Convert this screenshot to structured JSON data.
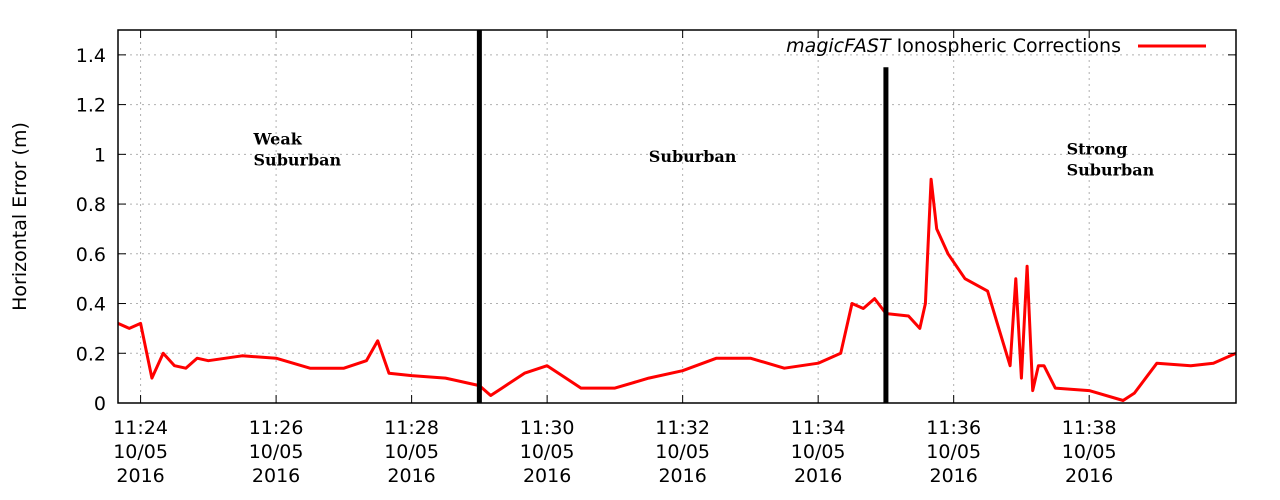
{
  "chart_data": {
    "type": "line",
    "ylabel": "Horizontal Error (m)",
    "xlabel": "",
    "xlim": [
      "11:23:40",
      "11:40:10"
    ],
    "ylim": [
      0,
      1.5
    ],
    "y_ticks": [
      "0",
      "0.2",
      "0.4",
      "0.6",
      "0.8",
      "1",
      "1.2",
      "1.4"
    ],
    "x_ticks": [
      {
        "time": "11:24",
        "label": [
          "11:24",
          "10/05",
          "2016"
        ]
      },
      {
        "time": "11:26",
        "label": [
          "11:26",
          "10/05",
          "2016"
        ]
      },
      {
        "time": "11:28",
        "label": [
          "11:28",
          "10/05",
          "2016"
        ]
      },
      {
        "time": "11:30",
        "label": [
          "11:30",
          "10/05",
          "2016"
        ]
      },
      {
        "time": "11:32",
        "label": [
          "11:32",
          "10/05",
          "2016"
        ]
      },
      {
        "time": "11:34",
        "label": [
          "11:34",
          "10/05",
          "2016"
        ]
      },
      {
        "time": "11:36",
        "label": [
          "11:36",
          "10/05",
          "2016"
        ]
      },
      {
        "time": "11:38",
        "label": [
          "11:38",
          "10/05",
          "2016"
        ]
      }
    ],
    "grid": true,
    "legend": {
      "position": "top-right"
    },
    "series": [
      {
        "name_italic": "magicFAST",
        "name_rest": " Ionospheric Corrections",
        "color": "#ff0000",
        "x": [
          "11:23:40",
          "11:23:50",
          "11:24:00",
          "11:24:10",
          "11:24:20",
          "11:24:30",
          "11:24:40",
          "11:24:50",
          "11:25:00",
          "11:25:30",
          "11:26:00",
          "11:26:30",
          "11:27:00",
          "11:27:20",
          "11:27:30",
          "11:27:40",
          "11:28:00",
          "11:28:30",
          "11:28:50",
          "11:29:00",
          "11:29:10",
          "11:29:20",
          "11:29:40",
          "11:30:00",
          "11:30:30",
          "11:31:00",
          "11:31:30",
          "11:32:00",
          "11:32:30",
          "11:33:00",
          "11:33:30",
          "11:34:00",
          "11:34:20",
          "11:34:30",
          "11:34:40",
          "11:34:50",
          "11:35:00",
          "11:35:20",
          "11:35:30",
          "11:35:35",
          "11:35:40",
          "11:35:45",
          "11:35:55",
          "11:36:10",
          "11:36:30",
          "11:36:40",
          "11:36:50",
          "11:36:55",
          "11:37:00",
          "11:37:05",
          "11:37:10",
          "11:37:15",
          "11:37:20",
          "11:37:30",
          "11:38:00",
          "11:38:30",
          "11:38:40",
          "11:39:00",
          "11:39:30",
          "11:39:50",
          "11:40:10"
        ],
        "y": [
          0.32,
          0.3,
          0.32,
          0.1,
          0.2,
          0.15,
          0.14,
          0.18,
          0.17,
          0.19,
          0.18,
          0.14,
          0.14,
          0.17,
          0.25,
          0.12,
          0.11,
          0.1,
          0.08,
          0.07,
          0.03,
          0.06,
          0.12,
          0.15,
          0.06,
          0.06,
          0.1,
          0.13,
          0.18,
          0.18,
          0.14,
          0.16,
          0.2,
          0.4,
          0.38,
          0.42,
          0.36,
          0.35,
          0.3,
          0.4,
          0.9,
          0.7,
          0.6,
          0.5,
          0.45,
          0.3,
          0.15,
          0.5,
          0.1,
          0.55,
          0.05,
          0.15,
          0.15,
          0.06,
          0.05,
          0.01,
          0.04,
          0.16,
          0.15,
          0.16,
          0.2
        ]
      }
    ],
    "dividers": [
      {
        "time": "11:29:00",
        "y_top": 1.5
      },
      {
        "time": "11:35:00",
        "y_top": 1.35
      }
    ],
    "annotations": [
      {
        "lines": [
          "Weak",
          "Suburban"
        ],
        "time": "11:25:40",
        "y": 1.04
      },
      {
        "lines": [
          "Suburban"
        ],
        "time": "11:31:30",
        "y": 0.97
      },
      {
        "lines": [
          "Strong",
          "Suburban"
        ],
        "time": "11:37:40",
        "y": 1.0
      }
    ]
  }
}
